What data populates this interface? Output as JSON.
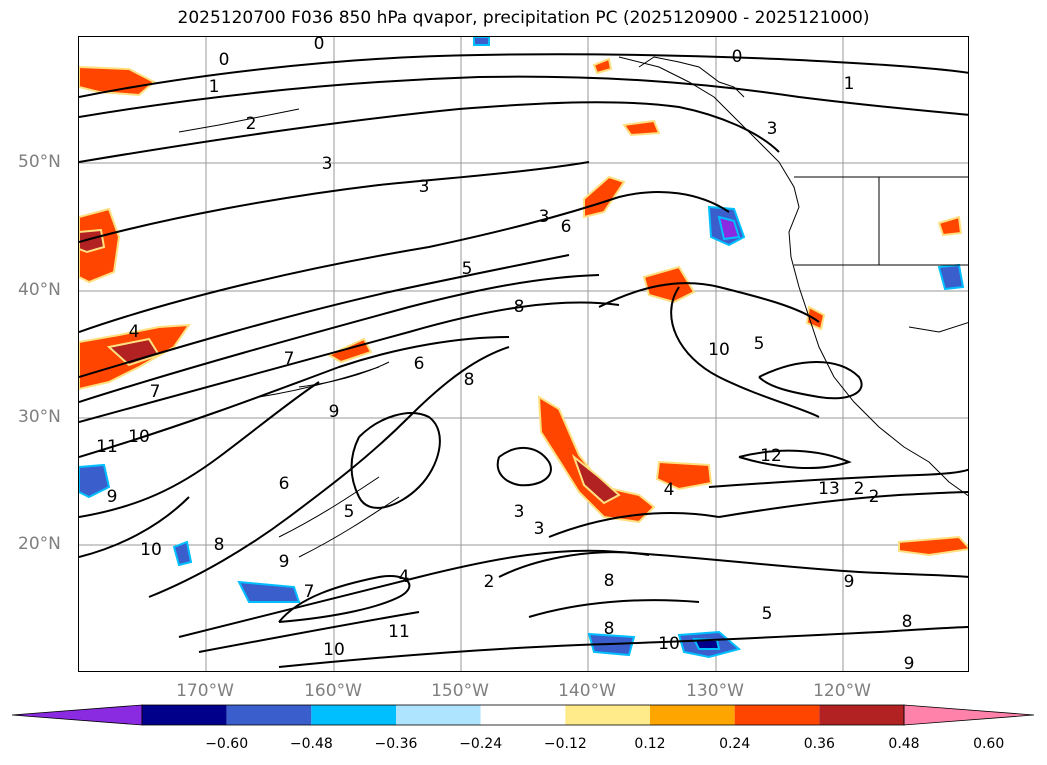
{
  "title": "2025120700 F036 850 hPa qvapor, precipitation PC (2025120900 - 2025121000)",
  "lat_labels": [
    "50°N",
    "40°N",
    "30°N",
    "20°N"
  ],
  "lon_labels": [
    "170°W",
    "160°W",
    "150°W",
    "140°W",
    "130°W",
    "120°W"
  ],
  "colorbar": {
    "ticks": [
      "−0.60",
      "−0.48",
      "−0.36",
      "−0.24",
      "−0.12",
      "0.12",
      "0.24",
      "0.36",
      "0.48",
      "0.60"
    ],
    "colors": [
      "#8a2be2",
      "#00008b",
      "#3a5fcd",
      "#00bfff",
      "#afe4ff",
      "#ffffff",
      "#ffeb8a",
      "#ffa500",
      "#ff4500",
      "#b22222",
      "#ff82ab"
    ]
  },
  "contour_labels": [
    "0",
    "0",
    "0",
    "1",
    "1",
    "2",
    "3",
    "3",
    "3",
    "3",
    "4",
    "5",
    "6",
    "8",
    "7",
    "7",
    "6",
    "8",
    "9",
    "10",
    "11",
    "9",
    "10",
    "8",
    "6",
    "5",
    "9",
    "10",
    "8",
    "9",
    "10",
    "5",
    "12",
    "13",
    "2",
    "2",
    "3",
    "2",
    "3",
    "4",
    "5",
    "9",
    "8",
    "4",
    "7",
    "8",
    "10",
    "11"
  ]
}
